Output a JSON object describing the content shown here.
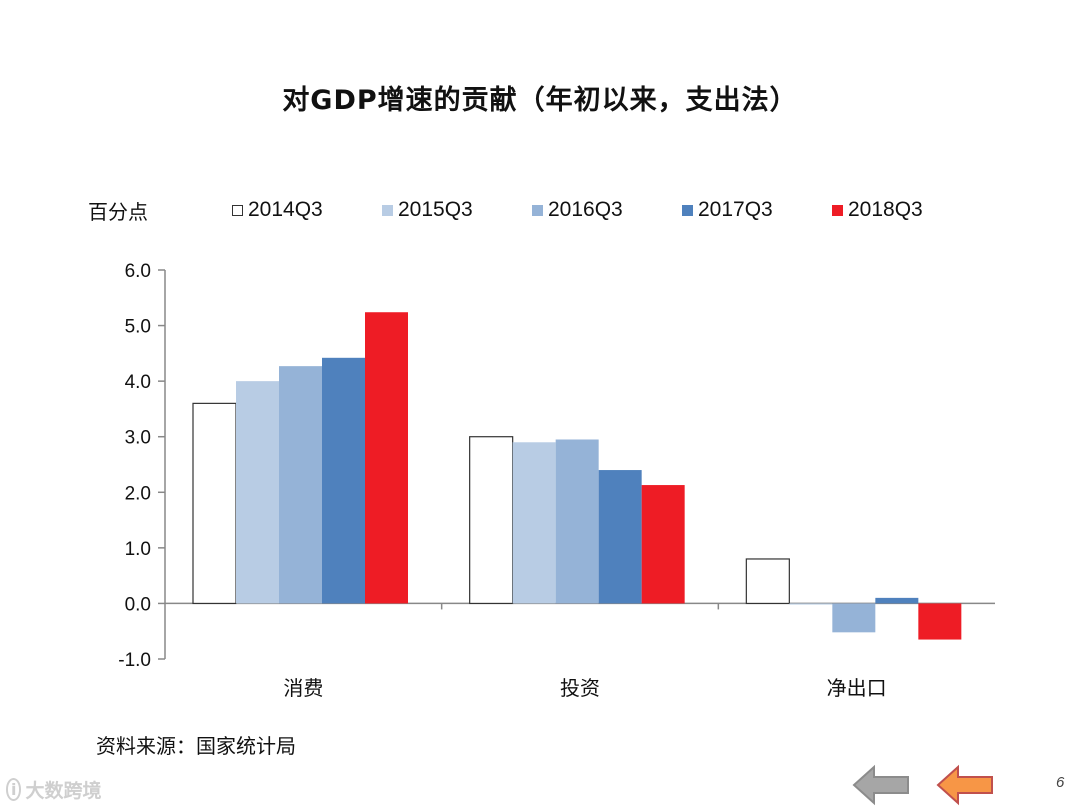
{
  "chart_data": {
    "type": "bar",
    "title": "对GDP增速的贡献（年初以来，支出法）",
    "ylabel": "百分点",
    "categories": [
      "消费",
      "投资",
      "净出口"
    ],
    "series": [
      {
        "name": "2014Q3",
        "values": [
          3.6,
          3.0,
          0.8
        ]
      },
      {
        "name": "2015Q3",
        "values": [
          4.0,
          2.9,
          -0.02
        ]
      },
      {
        "name": "2016Q3",
        "values": [
          4.27,
          2.95,
          -0.52
        ]
      },
      {
        "name": "2017Q3",
        "values": [
          4.42,
          2.4,
          0.1
        ]
      },
      {
        "name": "2018Q3",
        "values": [
          5.24,
          2.13,
          -0.65
        ]
      }
    ],
    "ylim": [
      -1.0,
      6.0
    ],
    "yticks": [
      "6.0",
      "5.0",
      "4.0",
      "3.0",
      "2.0",
      "1.0",
      "0.0",
      "-1.0"
    ],
    "legend": "top",
    "grid": false
  },
  "colors": {
    "series": [
      "#ffffff",
      "#b8cce4",
      "#95b3d7",
      "#4f81bd",
      "#ee1c25"
    ],
    "outline": "#333333",
    "nav_back": "#a6a6a6",
    "nav_forward": "#f79646"
  },
  "footer": {
    "source": "资料来源：国家统计局",
    "watermark": "大数跨境",
    "page_number": "6"
  },
  "nav": {
    "back_icon": "arrow-left-gray-icon",
    "forward_icon": "arrow-left-orange-icon"
  }
}
